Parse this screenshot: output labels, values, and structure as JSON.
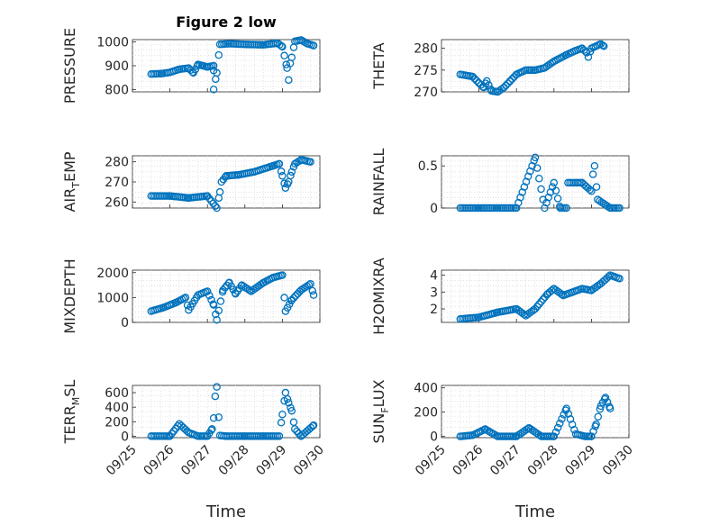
{
  "figure": {
    "title": "Figure 2 low",
    "xlabel": "Time",
    "marker_color": "#0072BD"
  },
  "chart_data": [
    {
      "type": "scatter",
      "id": "pressure",
      "ylabel": "PRESSURE",
      "ylabel_sub": "",
      "ylim": [
        790,
        1010
      ],
      "yticks": [
        800,
        900,
        1000
      ],
      "ytick_labels": [
        "800",
        "900",
        "1000"
      ],
      "xlim": [
        "09/25",
        "09/30"
      ],
      "xticks": [
        "09/25",
        "09/26",
        "09/27",
        "09/28",
        "09/29",
        "09/30"
      ],
      "show_xticklabels": false,
      "points": [
        [
          "09/25 12:00",
          865
        ],
        [
          "09/25 19:00",
          867
        ],
        [
          "09/26 00:00",
          872
        ],
        [
          "09/26 06:00",
          885
        ],
        [
          "09/26 12:00",
          890
        ],
        [
          "09/26 15:00",
          870
        ],
        [
          "09/26 18:00",
          905
        ],
        [
          "09/26 21:00",
          900
        ],
        [
          "09/27 00:00",
          895
        ],
        [
          "09/27 04:00",
          900
        ],
        [
          "09/27 04:00",
          880
        ],
        [
          "09/27 04:00",
          800
        ],
        [
          "09/27 06:00",
          870
        ],
        [
          "09/27 08:00",
          990
        ],
        [
          "09/27 14:00",
          993
        ],
        [
          "09/28 00:00",
          990
        ],
        [
          "09/28 12:00",
          988
        ],
        [
          "09/28 21:00",
          995
        ],
        [
          "09/29 00:00",
          980
        ],
        [
          "09/29 03:00",
          890
        ],
        [
          "09/29 04:00",
          840
        ],
        [
          "09/29 05:00",
          910
        ],
        [
          "09/29 06:00",
          935
        ],
        [
          "09/29 08:00",
          1003
        ],
        [
          "09/29 12:00",
          1008
        ],
        [
          "09/29 16:00",
          993
        ],
        [
          "09/29 20:00",
          985
        ]
      ]
    },
    {
      "type": "scatter",
      "id": "theta",
      "ylabel": "THETA",
      "ylabel_sub": "",
      "ylim": [
        270,
        282
      ],
      "yticks": [
        270,
        275,
        280
      ],
      "ytick_labels": [
        "270",
        "275",
        "280"
      ],
      "xlim": [
        "09/25",
        "09/30"
      ],
      "xticks": [
        "09/25",
        "09/26",
        "09/27",
        "09/28",
        "09/29",
        "09/30"
      ],
      "show_xticklabels": false,
      "points": [
        [
          "09/25 12:00",
          274
        ],
        [
          "09/25 20:00",
          273.5
        ],
        [
          "09/26 00:00",
          272
        ],
        [
          "09/26 03:00",
          271
        ],
        [
          "09/26 05:00",
          272.5
        ],
        [
          "09/26 08:00",
          270.2
        ],
        [
          "09/26 12:00",
          270
        ],
        [
          "09/26 16:00",
          271
        ],
        [
          "09/26 20:00",
          272.5
        ],
        [
          "09/27 00:00",
          274
        ],
        [
          "09/27 06:00",
          275
        ],
        [
          "09/27 12:00",
          275
        ],
        [
          "09/27 18:00",
          275.5
        ],
        [
          "09/28 00:00",
          277
        ],
        [
          "09/28 08:00",
          278.5
        ],
        [
          "09/28 14:00",
          279.5
        ],
        [
          "09/28 18:00",
          280
        ],
        [
          "09/28 21:00",
          279
        ],
        [
          "09/28 22:00",
          278
        ],
        [
          "09/29 00:00",
          280
        ],
        [
          "09/29 06:00",
          281
        ],
        [
          "09/29 08:00",
          280.5
        ]
      ]
    },
    {
      "type": "scatter",
      "id": "air_temp",
      "ylabel": "AIR",
      "ylabel_sub": "T",
      "ylabel_rest": "EMP",
      "ylim": [
        257,
        283
      ],
      "yticks": [
        260,
        270,
        280
      ],
      "ytick_labels": [
        "260",
        "270",
        "280"
      ],
      "xlim": [
        "09/25",
        "09/30"
      ],
      "xticks": [
        "09/25",
        "09/26",
        "09/27",
        "09/28",
        "09/29",
        "09/30"
      ],
      "show_xticklabels": false,
      "points": [
        [
          "09/25 12:00",
          263
        ],
        [
          "09/26 00:00",
          263
        ],
        [
          "09/26 12:00",
          262
        ],
        [
          "09/27 00:00",
          263
        ],
        [
          "09/27 06:00",
          257
        ],
        [
          "09/27 08:00",
          265
        ],
        [
          "09/27 09:00",
          270
        ],
        [
          "09/27 12:00",
          273
        ],
        [
          "09/27 20:00",
          273.5
        ],
        [
          "09/28 06:00",
          275
        ],
        [
          "09/28 18:00",
          278
        ],
        [
          "09/28 22:00",
          279
        ],
        [
          "09/29 00:00",
          273
        ],
        [
          "09/29 02:00",
          267
        ],
        [
          "09/29 04:00",
          270
        ],
        [
          "09/29 06:00",
          275
        ],
        [
          "09/29 08:00",
          279
        ],
        [
          "09/29 12:00",
          281
        ],
        [
          "09/29 18:00",
          280
        ]
      ]
    },
    {
      "type": "scatter",
      "id": "rainfall",
      "ylabel": "RAINFALL",
      "ylabel_sub": "",
      "ylim": [
        0,
        0.62
      ],
      "yticks": [
        0,
        0.5
      ],
      "ytick_labels": [
        "0",
        "0.5"
      ],
      "xlim": [
        "09/25",
        "09/30"
      ],
      "xticks": [
        "09/25",
        "09/26",
        "09/27",
        "09/28",
        "09/29",
        "09/30"
      ],
      "show_xticklabels": false,
      "points": [
        [
          "09/25 12:00",
          0
        ],
        [
          "09/26 00:00",
          0
        ],
        [
          "09/26 12:00",
          0
        ],
        [
          "09/27 00:00",
          0
        ],
        [
          "09/27 12:00",
          0.6
        ],
        [
          "09/27 18:00",
          0
        ],
        [
          "09/28 00:00",
          0.3
        ],
        [
          "09/28 04:00",
          0
        ],
        [
          "09/28 08:00",
          0
        ],
        [
          "09/28 09:00",
          0.3
        ],
        [
          "09/28 18:00",
          0.3
        ],
        [
          "09/29 00:00",
          0.2
        ],
        [
          "09/29 01:00",
          0.4
        ],
        [
          "09/29 02:00",
          0.5
        ],
        [
          "09/29 04:00",
          0.1
        ],
        [
          "09/29 12:00",
          0
        ],
        [
          "09/29 18:00",
          0
        ]
      ]
    },
    {
      "type": "scatter",
      "id": "mixdepth",
      "ylabel": "MIXDEPTH",
      "ylabel_sub": "",
      "ylim": [
        0,
        2100
      ],
      "yticks": [
        0,
        1000,
        2000
      ],
      "ytick_labels": [
        "0",
        "1000",
        "2000"
      ],
      "xlim": [
        "09/25",
        "09/30"
      ],
      "xticks": [
        "09/25",
        "09/26",
        "09/27",
        "09/28",
        "09/29",
        "09/30"
      ],
      "show_xticklabels": false,
      "points": [
        [
          "09/25 12:00",
          450
        ],
        [
          "09/25 20:00",
          600
        ],
        [
          "09/26 04:00",
          800
        ],
        [
          "09/26 10:00",
          1000
        ],
        [
          "09/26 12:00",
          500
        ],
        [
          "09/26 18:00",
          1100
        ],
        [
          "09/27 00:00",
          1250
        ],
        [
          "09/27 04:00",
          700
        ],
        [
          "09/27 06:00",
          100
        ],
        [
          "09/27 10:00",
          1300
        ],
        [
          "09/27 14:00",
          1600
        ],
        [
          "09/27 18:00",
          1150
        ],
        [
          "09/27 22:00",
          1500
        ],
        [
          "09/28 04:00",
          1250
        ],
        [
          "09/28 12:00",
          1600
        ],
        [
          "09/28 18:00",
          1800
        ],
        [
          "09/29 00:00",
          1900
        ],
        [
          "09/29 02:00",
          450
        ],
        [
          "09/29 06:00",
          900
        ],
        [
          "09/29 12:00",
          1300
        ],
        [
          "09/29 18:00",
          1550
        ],
        [
          "09/29 20:00",
          1100
        ]
      ]
    },
    {
      "type": "scatter",
      "id": "h2omixra",
      "ylabel": "H2OMIXRA",
      "ylabel_sub": "",
      "ylim": [
        1.2,
        4.3
      ],
      "yticks": [
        2,
        3,
        4
      ],
      "ytick_labels": [
        "2",
        "3",
        "4"
      ],
      "xlim": [
        "09/25",
        "09/30"
      ],
      "xticks": [
        "09/25",
        "09/26",
        "09/27",
        "09/28",
        "09/29",
        "09/30"
      ],
      "show_xticklabels": false,
      "points": [
        [
          "09/25 12:00",
          1.4
        ],
        [
          "09/26 00:00",
          1.5
        ],
        [
          "09/26 12:00",
          1.8
        ],
        [
          "09/27 00:00",
          2.0
        ],
        [
          "09/27 06:00",
          1.6
        ],
        [
          "09/27 12:00",
          2.0
        ],
        [
          "09/27 20:00",
          2.9
        ],
        [
          "09/28 00:00",
          3.2
        ],
        [
          "09/28 06:00",
          2.8
        ],
        [
          "09/28 12:00",
          3.0
        ],
        [
          "09/28 18:00",
          3.2
        ],
        [
          "09/29 00:00",
          3.1
        ],
        [
          "09/29 06:00",
          3.5
        ],
        [
          "09/29 12:00",
          4.0
        ],
        [
          "09/29 18:00",
          3.8
        ]
      ]
    },
    {
      "type": "scatter",
      "id": "terr_msl",
      "ylabel": "TERR",
      "ylabel_sub": "M",
      "ylabel_rest": "SL",
      "ylim": [
        -20,
        700
      ],
      "yticks": [
        0,
        200,
        400,
        600
      ],
      "ytick_labels": [
        "0",
        "200",
        "400",
        "600"
      ],
      "xlim": [
        "09/25",
        "09/30"
      ],
      "xticks": [
        "09/25",
        "09/26",
        "09/27",
        "09/28",
        "09/29",
        "09/30"
      ],
      "tick_labels": [
        "09/25",
        "09/26",
        "09/27",
        "09/28",
        "09/29",
        "09/30"
      ],
      "show_xticklabels": true,
      "points": [
        [
          "09/25 12:00",
          0
        ],
        [
          "09/26 00:00",
          0
        ],
        [
          "09/26 06:00",
          170
        ],
        [
          "09/26 12:00",
          50
        ],
        [
          "09/26 18:00",
          0
        ],
        [
          "09/27 00:00",
          0
        ],
        [
          "09/27 03:00",
          100
        ],
        [
          "09/27 04:00",
          250
        ],
        [
          "09/27 05:00",
          550
        ],
        [
          "09/27 06:00",
          680
        ],
        [
          "09/27 08:00",
          10
        ],
        [
          "09/27 12:00",
          0
        ],
        [
          "09/28 00:00",
          0
        ],
        [
          "09/28 12:00",
          0
        ],
        [
          "09/28 22:00",
          0
        ],
        [
          "09/29 00:00",
          300
        ],
        [
          "09/29 02:00",
          600
        ],
        [
          "09/29 04:00",
          460
        ],
        [
          "09/29 06:00",
          350
        ],
        [
          "09/29 08:00",
          100
        ],
        [
          "09/29 12:00",
          0
        ],
        [
          "09/29 20:00",
          150
        ]
      ]
    },
    {
      "type": "scatter",
      "id": "sun_flux",
      "ylabel": "SUN",
      "ylabel_sub": "F",
      "ylabel_rest": "LUX",
      "ylim": [
        -10,
        420
      ],
      "yticks": [
        0,
        200,
        400
      ],
      "ytick_labels": [
        "0",
        "200",
        "400"
      ],
      "xlim": [
        "09/25",
        "09/30"
      ],
      "xticks": [
        "09/25",
        "09/26",
        "09/27",
        "09/28",
        "09/29",
        "09/30"
      ],
      "tick_labels": [
        "09/25",
        "09/26",
        "09/27",
        "09/28",
        "09/29",
        "09/30"
      ],
      "show_xticklabels": true,
      "points": [
        [
          "09/25 12:00",
          0
        ],
        [
          "09/25 20:00",
          10
        ],
        [
          "09/26 04:00",
          60
        ],
        [
          "09/26 12:00",
          0
        ],
        [
          "09/27 00:00",
          0
        ],
        [
          "09/27 08:00",
          70
        ],
        [
          "09/27 16:00",
          0
        ],
        [
          "09/28 00:00",
          0
        ],
        [
          "09/28 08:00",
          230
        ],
        [
          "09/28 14:00",
          20
        ],
        [
          "09/28 20:00",
          0
        ],
        [
          "09/29 00:00",
          0
        ],
        [
          "09/29 03:00",
          100
        ],
        [
          "09/29 06:00",
          250
        ],
        [
          "09/29 09:00",
          320
        ],
        [
          "09/29 12:00",
          230
        ]
      ]
    }
  ]
}
